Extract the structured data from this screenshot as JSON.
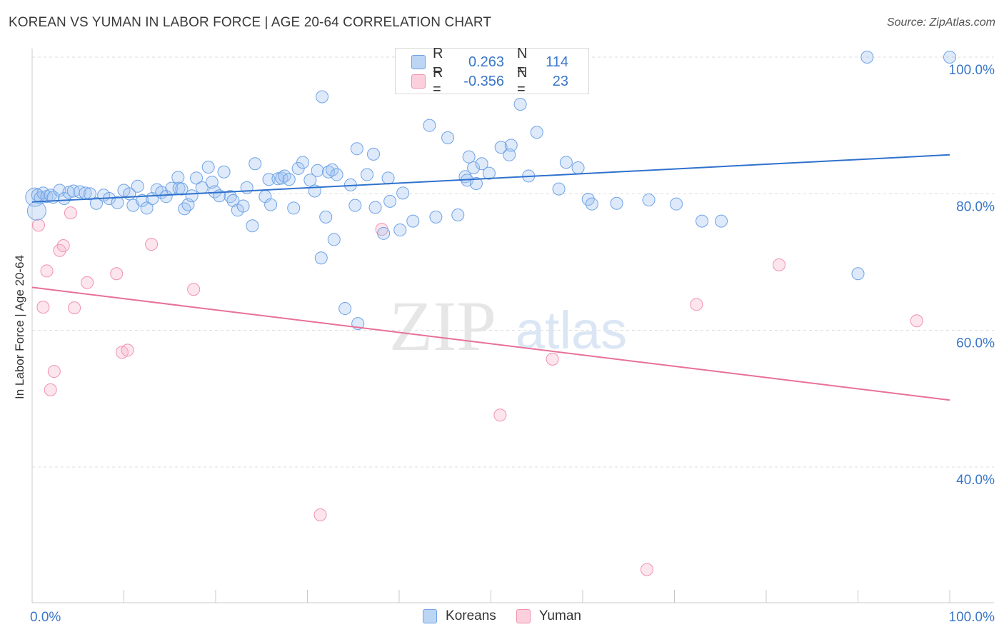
{
  "title": "KOREAN VS YUMAN IN LABOR FORCE | AGE 20-64 CORRELATION CHART",
  "source": "Source: ZipAtlas.com",
  "watermark": {
    "zip": "ZIP",
    "atlas": "atlas"
  },
  "legend": {
    "korean": {
      "r_label": "R =",
      "r_value": "0.263",
      "n_label": "N =",
      "n_value": "114",
      "color": "#6fa3e6"
    },
    "yuman": {
      "r_label": "R =",
      "r_value": "-0.356",
      "n_label": "N =",
      "n_value": "23",
      "color": "#f092b0"
    }
  },
  "bottom_legend": {
    "korean": "Koreans",
    "yuman": "Yuman"
  },
  "chart_data": {
    "type": "scatter",
    "ylabel": "In Labor Force | Age 20-64",
    "xlim": [
      0,
      100
    ],
    "ylim": [
      17,
      100
    ],
    "x_tick_labels": [
      "0.0%",
      "100.0%"
    ],
    "y_ticks": [
      {
        "value": 40,
        "label": "40.0%"
      },
      {
        "value": 60,
        "label": "60.0%"
      },
      {
        "value": 80,
        "label": "80.0%"
      },
      {
        "value": 100,
        "label": "100.0%"
      }
    ],
    "grid": true,
    "series": [
      {
        "name": "Koreans",
        "color": "#6fa3e6",
        "trend": [
          [
            0,
            78.8
          ],
          [
            100,
            85.7
          ]
        ],
        "points": [
          [
            0.3,
            79.5
          ],
          [
            0.6,
            79.8
          ],
          [
            0.9,
            79.4
          ],
          [
            1.2,
            80.1
          ],
          [
            1.6,
            79.6
          ],
          [
            2.0,
            79.8
          ],
          [
            2.3,
            79.5
          ],
          [
            3.0,
            80.5
          ],
          [
            3.5,
            79.3
          ],
          [
            4.0,
            80.2
          ],
          [
            4.5,
            80.4
          ],
          [
            5.2,
            80.3
          ],
          [
            5.8,
            80.1
          ],
          [
            6.3,
            80.0
          ],
          [
            7.0,
            78.6
          ],
          [
            7.8,
            79.8
          ],
          [
            8.4,
            79.3
          ],
          [
            9.3,
            78.7
          ],
          [
            10.0,
            80.5
          ],
          [
            10.6,
            80.0
          ],
          [
            11.0,
            78.3
          ],
          [
            11.5,
            81.1
          ],
          [
            12.0,
            79.0
          ],
          [
            12.5,
            77.9
          ],
          [
            13.1,
            79.3
          ],
          [
            13.6,
            80.6
          ],
          [
            14.1,
            80.2
          ],
          [
            14.6,
            79.6
          ],
          [
            15.2,
            80.8
          ],
          [
            15.9,
            82.4
          ],
          [
            16.0,
            80.8
          ],
          [
            16.3,
            80.7
          ],
          [
            16.6,
            77.8
          ],
          [
            17.0,
            78.4
          ],
          [
            17.4,
            79.7
          ],
          [
            17.9,
            82.3
          ],
          [
            18.5,
            80.9
          ],
          [
            19.2,
            83.9
          ],
          [
            19.6,
            81.7
          ],
          [
            19.9,
            80.3
          ],
          [
            20.4,
            79.7
          ],
          [
            20.9,
            83.2
          ],
          [
            21.6,
            79.6
          ],
          [
            21.9,
            79.0
          ],
          [
            22.4,
            77.6
          ],
          [
            23.0,
            78.2
          ],
          [
            23.4,
            80.9
          ],
          [
            24.0,
            75.3
          ],
          [
            24.3,
            84.4
          ],
          [
            25.4,
            79.6
          ],
          [
            25.8,
            82.1
          ],
          [
            26.0,
            78.4
          ],
          [
            26.8,
            82.2
          ],
          [
            27.2,
            82.3
          ],
          [
            27.5,
            82.6
          ],
          [
            28.0,
            82.1
          ],
          [
            28.5,
            77.9
          ],
          [
            29.0,
            83.7
          ],
          [
            29.5,
            84.6
          ],
          [
            30.3,
            82.0
          ],
          [
            30.8,
            80.4
          ],
          [
            31.1,
            83.4
          ],
          [
            31.5,
            70.6
          ],
          [
            31.6,
            94.2
          ],
          [
            32.0,
            76.6
          ],
          [
            32.3,
            83.2
          ],
          [
            32.7,
            83.5
          ],
          [
            32.9,
            73.3
          ],
          [
            33.2,
            82.8
          ],
          [
            34.1,
            63.2
          ],
          [
            34.7,
            81.3
          ],
          [
            35.2,
            78.3
          ],
          [
            35.4,
            86.6
          ],
          [
            35.5,
            61.0
          ],
          [
            36.5,
            82.8
          ],
          [
            37.2,
            85.8
          ],
          [
            37.4,
            78.0
          ],
          [
            38.3,
            74.2
          ],
          [
            38.8,
            82.3
          ],
          [
            39.0,
            78.9
          ],
          [
            40.1,
            74.7
          ],
          [
            40.4,
            80.1
          ],
          [
            41.5,
            76.0
          ],
          [
            43.3,
            90.0
          ],
          [
            44.0,
            76.6
          ],
          [
            45.3,
            88.2
          ],
          [
            46.4,
            76.9
          ],
          [
            47.2,
            82.5
          ],
          [
            47.4,
            82.0
          ],
          [
            47.6,
            85.4
          ],
          [
            48.1,
            83.8
          ],
          [
            48.4,
            81.5
          ],
          [
            49.0,
            84.4
          ],
          [
            49.8,
            83.0
          ],
          [
            51.1,
            86.8
          ],
          [
            52.0,
            85.7
          ],
          [
            52.2,
            87.1
          ],
          [
            53.2,
            93.1
          ],
          [
            54.1,
            82.6
          ],
          [
            55.0,
            89.0
          ],
          [
            57.4,
            80.7
          ],
          [
            58.2,
            84.6
          ],
          [
            59.5,
            83.8
          ],
          [
            60.6,
            79.2
          ],
          [
            61.0,
            78.5
          ],
          [
            63.7,
            78.6
          ],
          [
            67.2,
            79.1
          ],
          [
            70.2,
            78.5
          ],
          [
            73.0,
            76.0
          ],
          [
            75.1,
            76.0
          ],
          [
            90.0,
            68.3
          ],
          [
            91.0,
            100.0
          ],
          [
            100.0,
            100.0
          ],
          [
            0.5,
            77.5
          ]
        ]
      },
      {
        "name": "Yuman",
        "color": "#f092b0",
        "trend": [
          [
            0,
            66.3
          ],
          [
            100,
            49.8
          ]
        ],
        "points": [
          [
            0.7,
            75.4
          ],
          [
            1.2,
            63.4
          ],
          [
            1.6,
            68.7
          ],
          [
            2.0,
            51.3
          ],
          [
            2.4,
            54.0
          ],
          [
            3.0,
            71.7
          ],
          [
            3.4,
            72.4
          ],
          [
            4.2,
            77.2
          ],
          [
            4.6,
            63.3
          ],
          [
            6.0,
            67.0
          ],
          [
            9.2,
            68.3
          ],
          [
            9.8,
            56.8
          ],
          [
            10.4,
            57.1
          ],
          [
            13.0,
            72.6
          ],
          [
            17.6,
            66.0
          ],
          [
            31.4,
            33.0
          ],
          [
            38.1,
            74.8
          ],
          [
            51.0,
            47.6
          ],
          [
            56.7,
            55.8
          ],
          [
            67.0,
            25.0
          ],
          [
            72.4,
            63.8
          ],
          [
            81.4,
            69.6
          ],
          [
            96.4,
            61.4
          ]
        ]
      }
    ]
  }
}
